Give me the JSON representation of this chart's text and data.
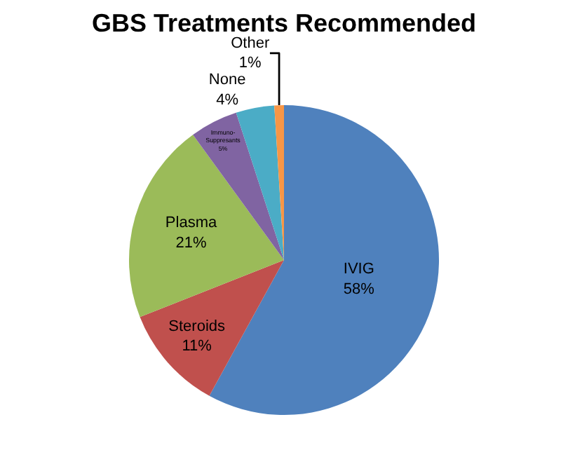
{
  "chart_data": {
    "type": "pie",
    "title": "GBS Treatments Recommended",
    "categories": [
      "IVIG",
      "Steroids",
      "Plasma",
      "Immuno-Suppresants",
      "None",
      "Other"
    ],
    "values": [
      58,
      11,
      21,
      5,
      4,
      1
    ],
    "value_labels": [
      "58%",
      "11%",
      "21%",
      "5%",
      "4%",
      "1%"
    ],
    "colors": [
      "#4f81bd",
      "#c0504d",
      "#9bbb59",
      "#8064a2",
      "#4bacc6",
      "#f79646"
    ],
    "legend": false
  }
}
